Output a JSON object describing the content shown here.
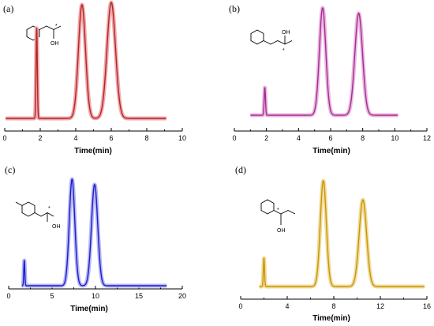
{
  "chart_data": [
    {
      "type": "line",
      "panel_label": "(a)",
      "xlabel": "Time(min)",
      "ylabel": "",
      "xlim": [
        0,
        10
      ],
      "xticks": [
        "0",
        "2",
        "4",
        "6",
        "8",
        "10"
      ],
      "color": "#b0281e",
      "halo": "#f2a8b0",
      "baseline_start": 0.05,
      "baseline_end": 9.1,
      "peaks": [
        {
          "x": 1.8,
          "height": 0.8,
          "width": 0.035
        },
        {
          "x": 4.35,
          "height": 1.0,
          "width": 0.2
        },
        {
          "x": 6.0,
          "height": 1.02,
          "width": 0.24
        }
      ],
      "molecule_labels": {
        "oh": "OH",
        "chiral": "*"
      }
    },
    {
      "type": "line",
      "panel_label": "(b)",
      "xlabel": "Time(min)",
      "ylabel": "",
      "xlim": [
        0,
        12
      ],
      "xticks": [
        "0",
        "2",
        "4",
        "6",
        "8",
        "10",
        "12"
      ],
      "color": "#a0308a",
      "halo": "#ecb6e4",
      "baseline_start": 1.0,
      "baseline_end": 10.2,
      "peaks": [
        {
          "x": 1.9,
          "height": 0.26,
          "width": 0.04
        },
        {
          "x": 5.5,
          "height": 1.0,
          "width": 0.2
        },
        {
          "x": 7.75,
          "height": 0.95,
          "width": 0.24
        }
      ],
      "molecule_labels": {
        "oh": "OH",
        "chiral": "*"
      }
    },
    {
      "type": "line",
      "panel_label": "(c)",
      "xlabel": "Time(min)",
      "ylabel": "",
      "xlim": [
        0,
        20
      ],
      "xticks": [
        "0",
        "5",
        "10",
        "15",
        "20"
      ],
      "color": "#1c1cd0",
      "halo": "#b6b6f2",
      "baseline_start": 1.5,
      "baseline_end": 18.2,
      "peaks": [
        {
          "x": 1.8,
          "height": 0.24,
          "width": 0.06
        },
        {
          "x": 7.3,
          "height": 1.0,
          "width": 0.32
        },
        {
          "x": 9.9,
          "height": 0.95,
          "width": 0.36
        }
      ],
      "molecule_labels": {
        "oh": "OH",
        "chiral": "*"
      }
    },
    {
      "type": "line",
      "panel_label": "(d)",
      "xlabel": "Time(min)",
      "ylabel": "",
      "xlim": [
        0,
        16
      ],
      "xticks": [
        "0",
        "4",
        "8",
        "12",
        "16"
      ],
      "color": "#c8960a",
      "halo": "#f0dc9c",
      "baseline_start": 1.6,
      "baseline_end": 15.8,
      "peaks": [
        {
          "x": 2.0,
          "height": 0.27,
          "width": 0.05
        },
        {
          "x": 7.1,
          "height": 1.0,
          "width": 0.26
        },
        {
          "x": 10.5,
          "height": 0.82,
          "width": 0.32
        }
      ],
      "molecule_labels": {
        "oh": "OH",
        "chiral": "*"
      }
    }
  ]
}
